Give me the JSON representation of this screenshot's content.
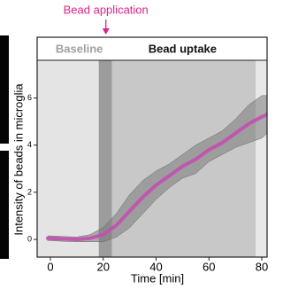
{
  "chart_data": {
    "type": "line",
    "annotation": {
      "text": "Bead application",
      "x": 21,
      "color": "#e0208a"
    },
    "header": [
      {
        "text": "Baseline",
        "x": 2,
        "color": "#a0a0a0"
      },
      {
        "text": "Bead uptake",
        "x": 50,
        "color": "#111111"
      }
    ],
    "regions": [
      {
        "start": -5,
        "end": 18.3,
        "color": "#e4e4e4"
      },
      {
        "start": 18.3,
        "end": 23.3,
        "color": "#9c9c9c"
      },
      {
        "start": 23.3,
        "end": 77.7,
        "color": "#c8c8c8"
      },
      {
        "start": 77.7,
        "end": 82,
        "color": "#e8e8e8"
      }
    ],
    "xlabel": "Time [min]",
    "ylabel": "Intensity of beads in microglia",
    "xlim": [
      -5,
      82
    ],
    "ylim": [
      -0.75,
      7.6
    ],
    "xticks": [
      0,
      20,
      40,
      60,
      80
    ],
    "yticks": [
      0,
      2,
      4,
      6
    ],
    "series": [
      {
        "color": "#c44fb0",
        "band_color": "#7a7a7a",
        "x": [
          -1,
          0,
          5,
          10,
          15,
          20,
          25,
          30,
          35,
          40,
          45,
          50,
          55,
          60,
          65,
          70,
          75,
          80,
          82
        ],
        "values": [
          0.05,
          0.05,
          0.02,
          0.0,
          0.05,
          0.2,
          0.6,
          1.2,
          1.8,
          2.3,
          2.7,
          3.1,
          3.4,
          3.8,
          4.1,
          4.5,
          4.9,
          5.2,
          5.3
        ],
        "upper": [
          0.15,
          0.15,
          0.12,
          0.1,
          0.2,
          0.5,
          1.1,
          1.9,
          2.5,
          2.9,
          3.2,
          3.6,
          4.0,
          4.3,
          4.6,
          5.1,
          5.7,
          6.1,
          6.1
        ],
        "lower": [
          -0.05,
          -0.05,
          -0.08,
          -0.1,
          -0.1,
          -0.1,
          0.1,
          0.5,
          1.1,
          1.7,
          2.2,
          2.6,
          2.8,
          3.3,
          3.6,
          3.9,
          4.1,
          4.3,
          4.5
        ]
      }
    ]
  }
}
